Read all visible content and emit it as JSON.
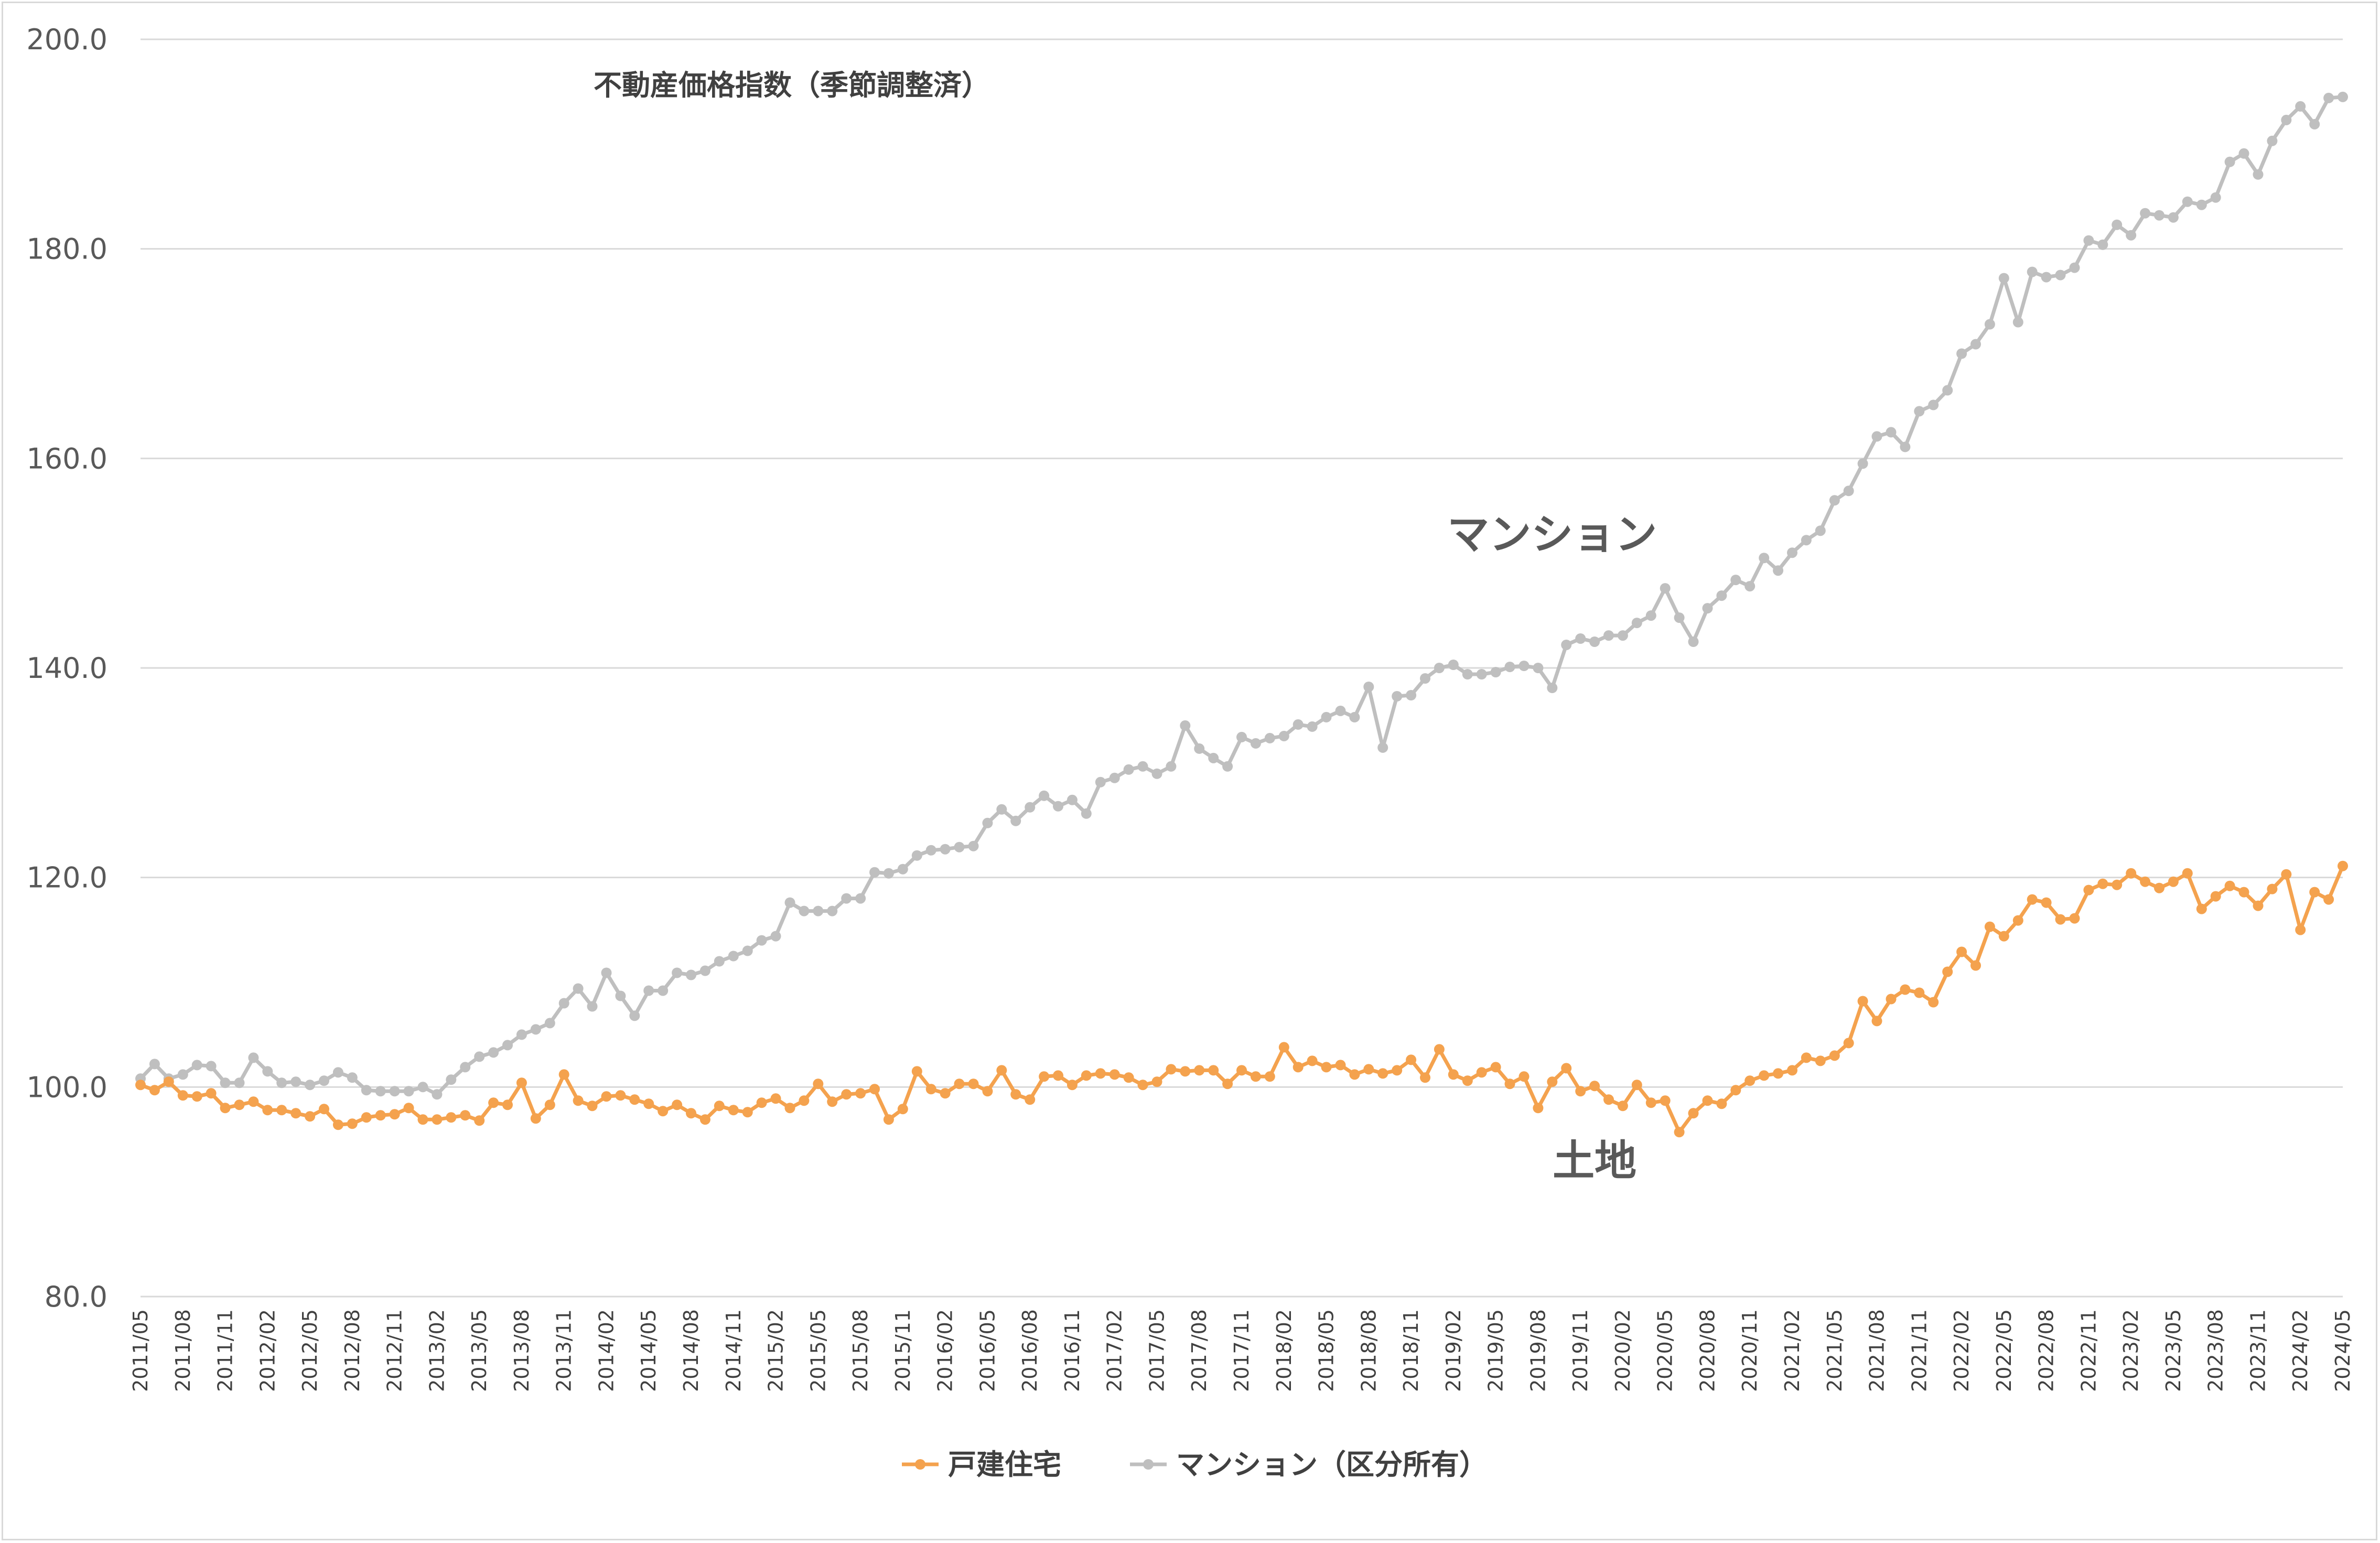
{
  "chart_data": {
    "type": "line",
    "title": "不動産価格指数（季節調整済）",
    "xlabel": "",
    "ylabel": "",
    "ylim": [
      80,
      200
    ],
    "y_ticks": [
      "80.0",
      "100.0",
      "120.0",
      "140.0",
      "160.0",
      "180.0",
      "200.0"
    ],
    "x_start": "2011/05",
    "x_tick_labels": [
      "2011/05",
      "2011/08",
      "2011/11",
      "2012/02",
      "2012/05",
      "2012/08",
      "2012/11",
      "2013/02",
      "2013/05",
      "2013/08",
      "2013/11",
      "2014/02",
      "2014/05",
      "2014/08",
      "2014/11",
      "2015/02",
      "2015/05",
      "2015/08",
      "2015/11",
      "2016/02",
      "2016/05",
      "2016/08",
      "2016/11",
      "2017/02",
      "2017/05",
      "2017/08",
      "2017/11",
      "2018/02",
      "2018/05",
      "2018/08",
      "2018/11",
      "2019/02",
      "2019/05",
      "2019/08",
      "2019/11",
      "2020/02",
      "2020/05",
      "2020/08",
      "2020/11",
      "2021/02",
      "2021/05",
      "2021/08",
      "2021/11",
      "2022/02",
      "2022/05",
      "2022/08",
      "2022/11",
      "2023/02",
      "2023/05",
      "2023/08",
      "2023/11",
      "2024/02",
      "2024/05"
    ],
    "grid": true,
    "legend_position": "bottom",
    "annotations": [
      {
        "text": "マンション",
        "at_series": "マンション（区分所有）",
        "at_index": 100
      },
      {
        "text": "土地",
        "at_series": "戸建住宅",
        "at_index": 103
      }
    ],
    "series": [
      {
        "name": "戸建住宅",
        "color": "#f4a24e",
        "values": [
          100.2,
          99.7,
          100.5,
          99.2,
          99.1,
          99.4,
          98.0,
          98.3,
          98.6,
          97.8,
          97.8,
          97.5,
          97.2,
          97.9,
          96.4,
          96.5,
          97.1,
          97.3,
          97.4,
          98.0,
          96.9,
          96.9,
          97.1,
          97.3,
          96.8,
          98.5,
          98.3,
          100.4,
          97.0,
          98.3,
          101.2,
          98.7,
          98.2,
          99.1,
          99.2,
          98.8,
          98.4,
          97.7,
          98.3,
          97.5,
          96.9,
          98.2,
          97.8,
          97.6,
          98.5,
          98.9,
          98.0,
          98.7,
          100.3,
          98.6,
          99.3,
          99.4,
          99.8,
          96.9,
          97.9,
          101.5,
          99.8,
          99.4,
          100.3,
          100.3,
          99.6,
          101.6,
          99.3,
          98.8,
          101.0,
          101.1,
          100.2,
          101.1,
          101.3,
          101.2,
          100.9,
          100.2,
          100.5,
          101.7,
          101.5,
          101.6,
          101.6,
          100.3,
          101.6,
          101.0,
          101.0,
          103.8,
          101.9,
          102.5,
          101.9,
          102.1,
          101.2,
          101.7,
          101.3,
          101.6,
          102.6,
          100.9,
          103.6,
          101.2,
          100.6,
          101.4,
          101.9,
          100.3,
          101.0,
          98.0,
          100.5,
          101.8,
          99.6,
          100.1,
          98.8,
          98.2,
          100.2,
          98.5,
          98.7,
          95.7,
          97.5,
          98.7,
          98.4,
          99.7,
          100.6,
          101.1,
          101.3,
          101.6,
          102.8,
          102.5,
          103.0,
          104.2,
          108.2,
          106.3,
          108.4,
          109.3,
          109.0,
          108.1,
          111.0,
          112.9,
          111.6,
          115.3,
          114.4,
          115.9,
          117.9,
          117.6,
          116.0,
          116.1,
          118.8,
          119.4,
          119.3,
          120.4,
          119.6,
          119.0,
          119.6,
          120.4,
          117.0,
          118.2,
          119.2,
          118.6,
          117.3,
          118.9,
          120.3,
          115.0,
          118.6,
          117.9,
          121.1
        ]
      },
      {
        "name": "マンション（区分所有）",
        "color": "#bfbfbf",
        "values": [
          100.8,
          102.2,
          100.8,
          101.2,
          102.1,
          102.0,
          100.4,
          100.4,
          102.8,
          101.5,
          100.4,
          100.5,
          100.2,
          100.6,
          101.4,
          100.9,
          99.7,
          99.6,
          99.6,
          99.6,
          100.0,
          99.3,
          100.7,
          101.9,
          102.9,
          103.3,
          104.0,
          105.0,
          105.5,
          106.1,
          108.0,
          109.4,
          107.7,
          110.9,
          108.7,
          106.8,
          109.2,
          109.2,
          110.9,
          110.7,
          111.1,
          112.0,
          112.5,
          113.0,
          114.0,
          114.4,
          117.6,
          116.8,
          116.8,
          116.8,
          118.0,
          118.0,
          120.5,
          120.4,
          120.8,
          122.1,
          122.6,
          122.7,
          122.9,
          123.0,
          125.2,
          126.5,
          125.4,
          126.7,
          127.8,
          126.8,
          127.4,
          126.1,
          129.1,
          129.5,
          130.3,
          130.6,
          129.9,
          130.6,
          134.5,
          132.3,
          131.4,
          130.6,
          133.4,
          132.8,
          133.3,
          133.5,
          134.6,
          134.4,
          135.3,
          135.9,
          135.3,
          138.2,
          132.4,
          137.3,
          137.4,
          139.0,
          140.0,
          140.3,
          139.4,
          139.4,
          139.6,
          140.1,
          140.2,
          140.0,
          138.1,
          142.2,
          142.8,
          142.5,
          143.1,
          143.1,
          144.3,
          145.0,
          147.6,
          144.8,
          142.5,
          145.7,
          146.9,
          148.4,
          147.8,
          150.5,
          149.3,
          151.0,
          152.2,
          153.1,
          156.0,
          156.9,
          159.5,
          162.1,
          162.5,
          161.1,
          164.5,
          165.1,
          166.5,
          170.0,
          170.9,
          172.8,
          177.2,
          173.0,
          177.8,
          177.3,
          177.5,
          178.2,
          180.8,
          180.4,
          182.3,
          181.3,
          183.4,
          183.2,
          183.0,
          184.5,
          184.2,
          184.9,
          188.3,
          189.1,
          187.1,
          190.3,
          192.3,
          193.6,
          191.9,
          194.4,
          194.5
        ]
      }
    ]
  }
}
